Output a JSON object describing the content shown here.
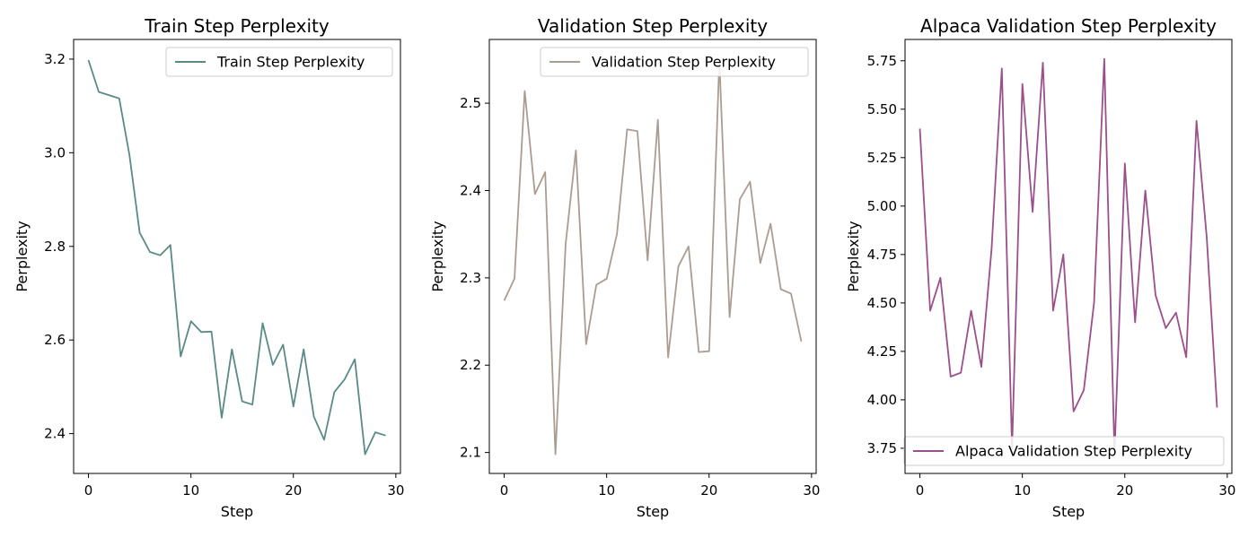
{
  "chart_data": [
    {
      "type": "line",
      "title": "Train Step Perplexity",
      "xlabel": "Step",
      "ylabel": "Perplexity",
      "xlim": [
        -1.45,
        30.45
      ],
      "ylim": [
        2.315,
        3.242
      ],
      "xticks": [
        0,
        10,
        20,
        30
      ],
      "yticks": [
        2.4,
        2.6,
        2.8,
        3.0,
        3.2
      ],
      "ytick_labels": [
        "2.4",
        "2.6",
        "2.8",
        "3.0",
        "3.2"
      ],
      "legend_position": "top-right",
      "grid": false,
      "series": [
        {
          "name": "Train Step Perplexity",
          "color": "#5b8a86",
          "x": [
            0,
            1,
            2,
            3,
            4,
            5,
            6,
            7,
            8,
            9,
            10,
            11,
            12,
            13,
            14,
            15,
            16,
            17,
            18,
            19,
            20,
            21,
            22,
            23,
            24,
            25,
            26,
            27,
            28,
            29
          ],
          "y": [
            3.198,
            3.13,
            3.123,
            3.116,
            2.995,
            2.829,
            2.788,
            2.781,
            2.803,
            2.565,
            2.64,
            2.617,
            2.618,
            2.434,
            2.58,
            2.469,
            2.462,
            2.636,
            2.547,
            2.59,
            2.458,
            2.58,
            2.436,
            2.387,
            2.489,
            2.516,
            2.559,
            2.356,
            2.403,
            2.396
          ]
        }
      ]
    },
    {
      "type": "line",
      "title": "Validation Step Perplexity",
      "xlabel": "Step",
      "ylabel": "Perplexity",
      "xlim": [
        -1.45,
        30.45
      ],
      "ylim": [
        2.076,
        2.573
      ],
      "xticks": [
        0,
        10,
        20,
        30
      ],
      "yticks": [
        2.1,
        2.2,
        2.3,
        2.4,
        2.5
      ],
      "ytick_labels": [
        "2.1",
        "2.2",
        "2.3",
        "2.4",
        "2.5"
      ],
      "legend_position": "top-right",
      "grid": false,
      "series": [
        {
          "name": "Validation Step Perplexity",
          "color": "#ab9c91",
          "x": [
            0,
            1,
            2,
            3,
            4,
            5,
            6,
            7,
            8,
            9,
            10,
            11,
            12,
            13,
            14,
            15,
            16,
            17,
            18,
            19,
            20,
            21,
            22,
            23,
            24,
            25,
            26,
            27,
            28,
            29
          ],
          "y": [
            2.274,
            2.299,
            2.514,
            2.396,
            2.421,
            2.098,
            2.339,
            2.446,
            2.224,
            2.292,
            2.299,
            2.35,
            2.47,
            2.468,
            2.32,
            2.481,
            2.209,
            2.313,
            2.336,
            2.215,
            2.216,
            2.549,
            2.255,
            2.39,
            2.41,
            2.317,
            2.362,
            2.287,
            2.282,
            2.227
          ]
        }
      ]
    },
    {
      "type": "line",
      "title": "Alpaca Validation Step Perplexity",
      "xlabel": "Step",
      "ylabel": "Perplexity",
      "xlim": [
        -1.45,
        30.45
      ],
      "ylim": [
        3.62,
        5.86
      ],
      "xticks": [
        0,
        10,
        20,
        30
      ],
      "yticks": [
        3.75,
        4.0,
        4.25,
        4.5,
        4.75,
        5.0,
        5.25,
        5.5,
        5.75
      ],
      "ytick_labels": [
        "3.75",
        "4.00",
        "4.25",
        "4.50",
        "4.75",
        "5.00",
        "5.25",
        "5.50",
        "5.75"
      ],
      "legend_position": "bottom-right",
      "grid": false,
      "series": [
        {
          "name": "Alpaca Validation Step Perplexity",
          "color": "#9b4f8b",
          "x": [
            0,
            1,
            2,
            3,
            4,
            5,
            6,
            7,
            8,
            9,
            10,
            11,
            12,
            13,
            14,
            15,
            16,
            17,
            18,
            19,
            20,
            21,
            22,
            23,
            24,
            25,
            26,
            27,
            28,
            29
          ],
          "y": [
            5.4,
            4.46,
            4.63,
            4.12,
            4.14,
            4.46,
            4.17,
            4.78,
            5.71,
            3.75,
            5.63,
            4.97,
            5.74,
            4.46,
            4.75,
            3.94,
            4.05,
            4.5,
            5.76,
            3.72,
            5.22,
            4.4,
            5.08,
            4.54,
            4.37,
            4.45,
            4.22,
            5.44,
            4.84,
            3.96
          ]
        }
      ]
    }
  ]
}
